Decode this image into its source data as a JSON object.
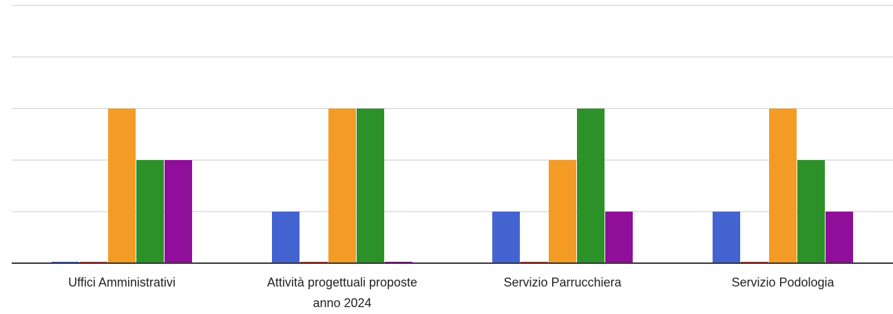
{
  "chart_data": {
    "type": "bar",
    "title": "",
    "xlabel": "",
    "ylabel": "",
    "categories": [
      [
        "Uffici Amministrativi"
      ],
      [
        "Attività progettuali proposte",
        "anno 2024"
      ],
      [
        "Servizio Parrucchiera"
      ],
      [
        "Servizio Podologia"
      ]
    ],
    "series": [
      {
        "color": "#4363d1",
        "values": [
          0,
          1,
          1,
          1
        ]
      },
      {
        "color": "#d5372a",
        "values": [
          0,
          0,
          0,
          0
        ]
      },
      {
        "color": "#f49b25",
        "values": [
          3,
          3,
          2,
          3
        ]
      },
      {
        "color": "#2c9128",
        "values": [
          2,
          3,
          3,
          2
        ]
      },
      {
        "color": "#8f0e9a",
        "values": [
          2,
          0,
          1,
          1
        ]
      }
    ],
    "ylim": [
      0,
      5
    ],
    "gridlines": true,
    "tick_labels_visible": false
  }
}
